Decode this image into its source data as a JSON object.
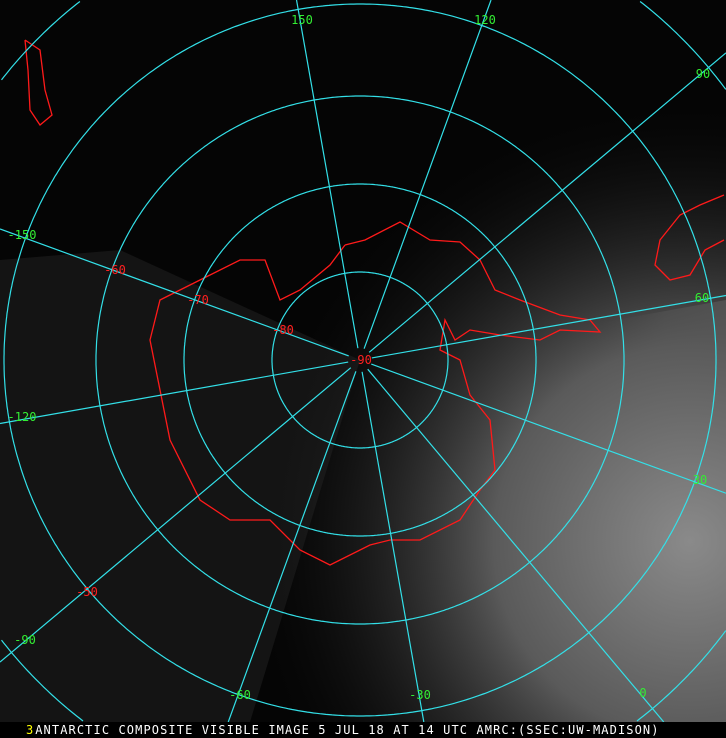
{
  "caption": "ANTARCTIC COMPOSITE VISIBLE IMAGE 5 JUL 18 AT 14 UTC AMRC:(SSEC:UW-MADISON)",
  "caption_marker": "3",
  "colors": {
    "grid": "#33e0e8",
    "longitude_labels": "#33ee33",
    "latitude_labels": "#ff2020",
    "coastline": "#ff1a1a"
  },
  "longitude_labels": [
    "150",
    "120",
    "90",
    "60",
    "30",
    "0",
    "-30",
    "-60",
    "-90",
    "-120",
    "-150"
  ],
  "latitude_labels": [
    "-90",
    "-80",
    "-70",
    "-60",
    "-50"
  ]
}
